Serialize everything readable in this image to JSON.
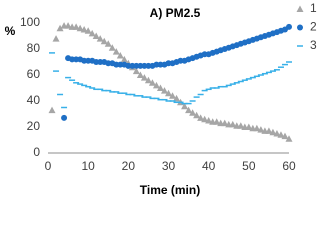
{
  "chart_data": {
    "type": "scatter",
    "title": "A) PM2.5",
    "ylabel": "%",
    "xlabel": "Time (min)",
    "x": [
      1,
      2,
      3,
      4,
      5,
      6,
      7,
      8,
      9,
      10,
      11,
      12,
      13,
      14,
      15,
      16,
      17,
      18,
      19,
      20,
      21,
      22,
      23,
      24,
      25,
      26,
      27,
      28,
      29,
      30,
      31,
      32,
      33,
      34,
      35,
      36,
      37,
      38,
      39,
      40,
      41,
      42,
      43,
      44,
      45,
      46,
      47,
      48,
      49,
      50,
      51,
      52,
      53,
      54,
      55,
      56,
      57,
      58,
      59,
      60
    ],
    "series": [
      {
        "name": "1",
        "color": "#a6a6a6",
        "marker": "triangle",
        "values": [
          33,
          88,
          96,
          98,
          98,
          97,
          97,
          96,
          95,
          94,
          92,
          90,
          88,
          86,
          84,
          81,
          78,
          75,
          72,
          69,
          66,
          63,
          60,
          58,
          56,
          54,
          52,
          50,
          48,
          46,
          44,
          42,
          39,
          36,
          33,
          31,
          29,
          27,
          26,
          25,
          24,
          24,
          23,
          23,
          22,
          22,
          21,
          21,
          20,
          20,
          19,
          19,
          18,
          17,
          17,
          16,
          15,
          14,
          13,
          11
        ]
      },
      {
        "name": "2",
        "color": "#1f6fc5",
        "marker": "circle",
        "values": [
          null,
          null,
          null,
          27,
          73,
          72,
          72,
          72,
          71,
          71,
          71,
          70,
          70,
          70,
          69,
          69,
          68,
          68,
          68,
          67,
          67,
          67,
          67,
          67,
          67,
          67,
          68,
          68,
          68,
          69,
          69,
          70,
          71,
          71,
          72,
          73,
          74,
          75,
          76,
          76,
          77,
          78,
          79,
          80,
          81,
          82,
          83,
          84,
          85,
          86,
          87,
          88,
          89,
          90,
          91,
          92,
          93,
          94,
          95,
          97
        ]
      },
      {
        "name": "3",
        "color": "#38b0e8",
        "marker": "dash",
        "values": [
          77,
          63,
          45,
          35,
          58,
          56,
          54,
          53,
          52,
          51,
          50,
          49,
          49,
          48,
          48,
          47,
          47,
          46,
          46,
          45,
          45,
          44,
          44,
          43,
          43,
          42,
          42,
          41,
          41,
          40,
          40,
          39,
          39,
          38,
          38,
          40,
          43,
          45,
          48,
          49,
          50,
          50,
          51,
          51,
          52,
          53,
          54,
          55,
          56,
          57,
          58,
          59,
          60,
          61,
          62,
          63,
          64,
          66,
          68,
          70
        ]
      }
    ],
    "xlim": [
      0,
      60
    ],
    "xticks": [
      0,
      10,
      20,
      30,
      40,
      50,
      60
    ],
    "ylim": [
      0,
      100
    ],
    "yticks": [
      0,
      20,
      40,
      60,
      80,
      100
    ]
  }
}
